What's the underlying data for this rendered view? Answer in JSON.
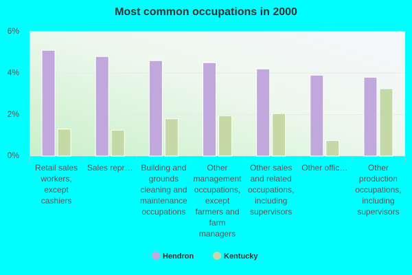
{
  "chart_data": {
    "type": "bar",
    "title": "Most common occupations in 2000",
    "categories": [
      "Retail sales workers, except cashiers",
      "Sales repr…",
      "Building and grounds cleaning and maintenance occupations",
      "Other management occupations, except farmers and farm managers",
      "Other sales and related occupations, including supervisors",
      "Other offic…",
      "Other production occupations, including supervisors"
    ],
    "series": [
      {
        "name": "Hendron",
        "color": "#c0a8dc",
        "values": [
          5.1,
          4.8,
          4.6,
          4.5,
          4.2,
          3.9,
          3.8
        ]
      },
      {
        "name": "Kentucky",
        "color": "#c5d9a7",
        "values": [
          1.3,
          1.25,
          1.8,
          1.95,
          2.05,
          0.75,
          3.25
        ]
      }
    ],
    "ylim": [
      0,
      6
    ],
    "yticks": [
      {
        "value": 0,
        "label": "0%"
      },
      {
        "value": 2,
        "label": "2%"
      },
      {
        "value": 4,
        "label": "4%"
      },
      {
        "value": 6,
        "label": "6%"
      }
    ],
    "grid": true
  }
}
